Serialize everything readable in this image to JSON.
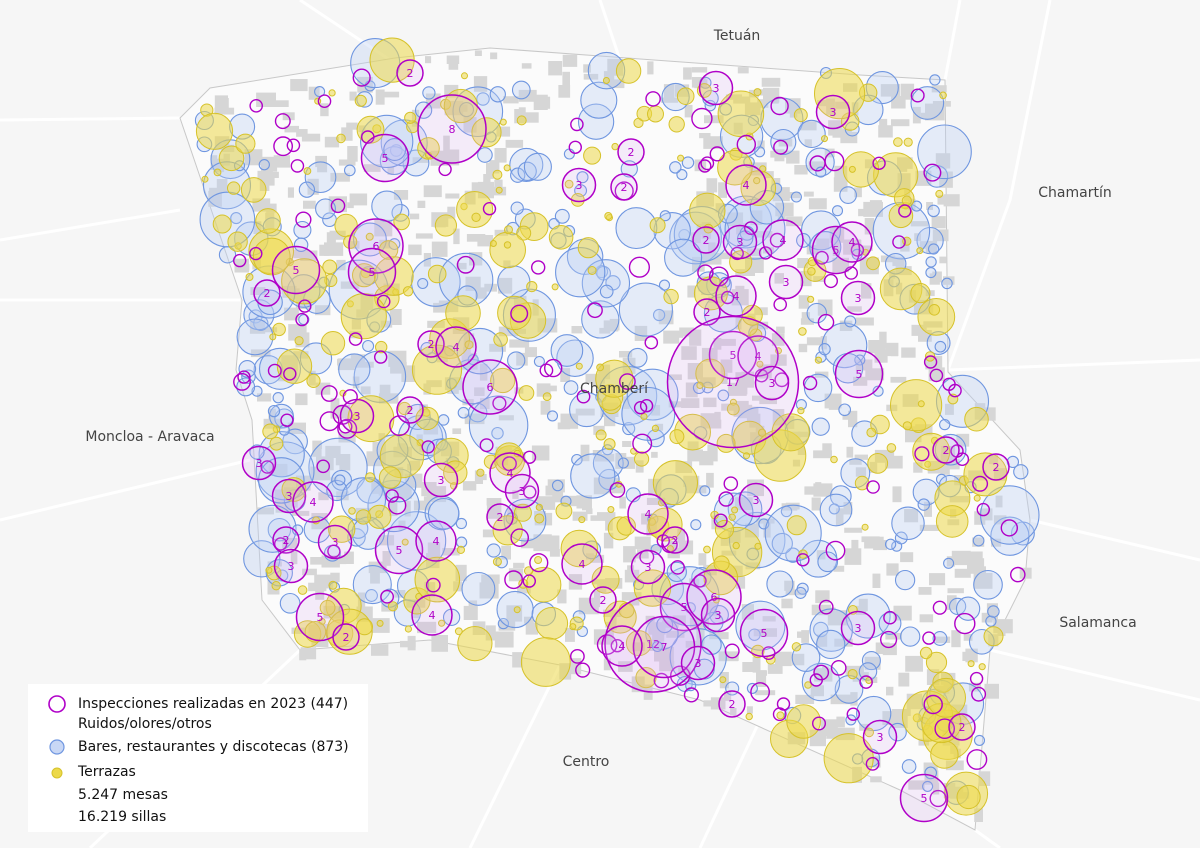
{
  "districts": [
    "Tetuán",
    "Chamartín",
    "Moncloa - Aravaca",
    "Chamberí",
    "Salamanca",
    "Centro"
  ],
  "legend": {
    "inspections": "Inspecciones realizadas en 2023 (447)",
    "inspections_sub": "Ruidos/olores/otros",
    "bars": "Bares, restaurantes y discotecas (873)",
    "terraces": "Terrazas",
    "tables": "5.247 mesas",
    "chairs": "16.219 sillas"
  },
  "inspection_counts": [
    2,
    8,
    5,
    6,
    5,
    5,
    2,
    3,
    3,
    2,
    3,
    2,
    4,
    2,
    3,
    4,
    5,
    4,
    3,
    3,
    4,
    2,
    5,
    4,
    17,
    3,
    5,
    2,
    4,
    6,
    3,
    2,
    3,
    4,
    3,
    3,
    3,
    4,
    2,
    3,
    3,
    5,
    4,
    2,
    4,
    3,
    2,
    4,
    3,
    2,
    5,
    6,
    3,
    12,
    7,
    4,
    3,
    5,
    2,
    4,
    5,
    3,
    2,
    2,
    2,
    3,
    5,
    2
  ]
}
